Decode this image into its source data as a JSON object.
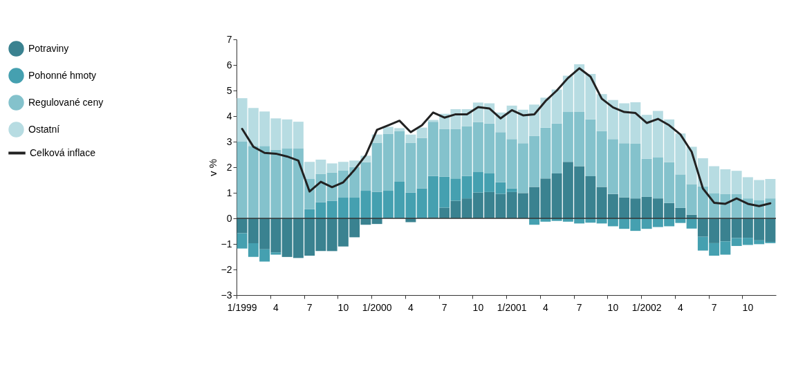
{
  "chart_data": {
    "type": "bar",
    "stacked": true,
    "ylabel": "v %",
    "categories": [
      "1/1999",
      null,
      null,
      "4",
      null,
      null,
      "7",
      null,
      null,
      "10",
      null,
      null,
      "1/2000",
      null,
      null,
      "4",
      null,
      null,
      "7",
      null,
      null,
      "10",
      null,
      null,
      "1/2001",
      null,
      null,
      "4",
      null,
      null,
      "7",
      null,
      null,
      "10",
      null,
      null,
      "1/2002",
      null,
      null,
      "4",
      null,
      null,
      "7",
      null,
      null,
      "10",
      null,
      null
    ],
    "series": [
      {
        "name": "Potraviny",
        "color": "#3a8290",
        "values": [
          -0.58,
          -0.97,
          -1.21,
          -1.33,
          -1.51,
          -1.55,
          -1.46,
          -1.28,
          -1.28,
          -1.1,
          -0.74,
          -0.25,
          -0.22,
          0,
          0,
          -0.15,
          0,
          0.05,
          0.42,
          0.69,
          0.78,
          1.01,
          1.03,
          0.96,
          1.03,
          0.99,
          1.23,
          1.56,
          1.76,
          2.21,
          2.04,
          1.65,
          1.23,
          0.95,
          0.82,
          0.78,
          0.84,
          0.78,
          0.6,
          0.41,
          0.14,
          -0.72,
          -0.97,
          -0.9,
          -0.77,
          -0.76,
          -0.86,
          -0.92
        ]
      },
      {
        "name": "Pohonné hmoty",
        "color": "#45a0b0",
        "values": [
          -0.6,
          -0.54,
          -0.48,
          -0.09,
          0,
          0,
          0.36,
          0.63,
          0.68,
          0.81,
          0.81,
          1.08,
          1.04,
          1.08,
          1.45,
          1.01,
          1.17,
          1.61,
          1.21,
          0.87,
          0.88,
          0.8,
          0.73,
          0.45,
          0.14,
          0,
          -0.25,
          -0.13,
          -0.1,
          -0.13,
          -0.2,
          -0.17,
          -0.2,
          -0.31,
          -0.41,
          -0.49,
          -0.41,
          -0.34,
          -0.31,
          -0.18,
          -0.4,
          -0.54,
          -0.49,
          -0.52,
          -0.31,
          -0.28,
          -0.15,
          -0.05
        ]
      },
      {
        "name": "Regulované ceny",
        "color": "#84c2cc",
        "values": [
          3.0,
          2.83,
          2.83,
          2.69,
          2.74,
          2.74,
          1.18,
          1.11,
          1.11,
          1.07,
          1.2,
          1.12,
          1.92,
          2.23,
          1.96,
          1.95,
          1.97,
          2.12,
          1.87,
          1.94,
          1.94,
          1.95,
          1.95,
          1.96,
          1.93,
          1.95,
          1.99,
          1.99,
          1.95,
          1.95,
          2.12,
          2.22,
          2.18,
          2.15,
          2.12,
          2.14,
          1.49,
          1.6,
          1.6,
          1.31,
          1.2,
          1.25,
          0.99,
          0.96,
          0.96,
          0.78,
          0.72,
          0.78
        ]
      },
      {
        "name": "Ostatní",
        "color": "#b7dce2",
        "values": [
          1.7,
          1.49,
          1.35,
          1.22,
          1.13,
          1.04,
          0.67,
          0.56,
          0.36,
          0.33,
          0.25,
          0.25,
          0.32,
          0.27,
          0.12,
          0.32,
          0.41,
          0.07,
          0.59,
          0.77,
          0.67,
          0.77,
          0.79,
          0.77,
          1.31,
          1.31,
          1.23,
          1.17,
          1.33,
          1.42,
          1.87,
          1.78,
          1.45,
          1.53,
          1.56,
          1.62,
          1.72,
          1.82,
          1.67,
          1.6,
          1.46,
          1.1,
          1.05,
          0.96,
          0.9,
          0.83,
          0.78,
          0.76
        ]
      },
      {
        "name": "Celková inflace",
        "type": "line",
        "color": "#222222",
        "values": [
          3.5,
          2.8,
          2.56,
          2.53,
          2.42,
          2.26,
          1.05,
          1.43,
          1.22,
          1.41,
          1.9,
          2.47,
          3.46,
          3.64,
          3.82,
          3.37,
          3.64,
          4.14,
          3.94,
          4.07,
          4.07,
          4.35,
          4.3,
          3.91,
          4.23,
          4.03,
          4.07,
          4.59,
          5.0,
          5.49,
          5.87,
          5.54,
          4.68,
          4.34,
          4.16,
          4.12,
          3.73,
          3.89,
          3.64,
          3.28,
          2.6,
          1.17,
          0.61,
          0.57,
          0.78,
          0.57,
          0.48,
          0.59
        ]
      }
    ],
    "ylim": [
      -3,
      7
    ],
    "yticks": [
      -3,
      -2,
      -1,
      0,
      1,
      2,
      3,
      4,
      5,
      6,
      7
    ],
    "ref_lines": [
      {
        "axis": "y",
        "value": 0,
        "color": "#333333"
      }
    ],
    "grid": false,
    "legend": "left",
    "marker": "none",
    "line_style": "solid"
  }
}
